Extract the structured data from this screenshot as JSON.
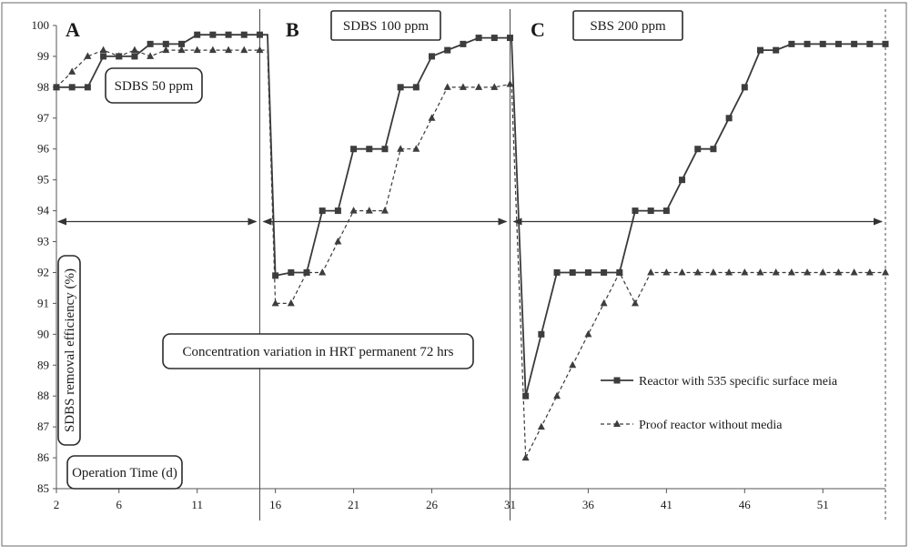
{
  "chart_data": {
    "type": "line",
    "xlabel": "Operation Time (d)",
    "ylabel": "SDBS removal efficiency (%)",
    "xlim": [
      2,
      55
    ],
    "ylim": [
      85,
      100
    ],
    "xticks": [
      2,
      6,
      11,
      16,
      21,
      26,
      31,
      36,
      41,
      46,
      51
    ],
    "yticks": [
      85,
      86,
      87,
      88,
      89,
      90,
      91,
      92,
      93,
      94,
      95,
      96,
      97,
      98,
      99,
      100
    ],
    "grid": false,
    "legend_position": "lower-right",
    "panels": [
      {
        "letter": "A",
        "label": "SDBS 50 ppm",
        "x_start": 2,
        "x_end": 15
      },
      {
        "letter": "B",
        "label": "SDBS 100 ppm",
        "x_start": 15,
        "x_end": 31
      },
      {
        "letter": "C",
        "label": "SBS 200 ppm",
        "x_start": 31,
        "x_end": 55
      }
    ],
    "annotation": "Concentration variation in HRT permanent 72 hrs",
    "panel_dividers": [
      15,
      31,
      55
    ],
    "series": [
      {
        "name": "Reactor with 535 specific surface meia",
        "marker": "square",
        "line_style": "solid",
        "points": [
          [
            2,
            98
          ],
          [
            3,
            98
          ],
          [
            4,
            98
          ],
          [
            5,
            99
          ],
          [
            6,
            99
          ],
          [
            7,
            99
          ],
          [
            8,
            99.4
          ],
          [
            9,
            99.4
          ],
          [
            10,
            99.4
          ],
          [
            11,
            99.7
          ],
          [
            12,
            99.7
          ],
          [
            13,
            99.7
          ],
          [
            14,
            99.7
          ],
          [
            15,
            99.7
          ],
          [
            15.5,
            99.7
          ],
          [
            16,
            91.9
          ],
          [
            17,
            92
          ],
          [
            18,
            92
          ],
          [
            19,
            94
          ],
          [
            20,
            94
          ],
          [
            21,
            96
          ],
          [
            22,
            96
          ],
          [
            23,
            96
          ],
          [
            24,
            98
          ],
          [
            25,
            98
          ],
          [
            26,
            99
          ],
          [
            27,
            99.2
          ],
          [
            28,
            99.4
          ],
          [
            29,
            99.6
          ],
          [
            30,
            99.6
          ],
          [
            31,
            99.6
          ],
          [
            31.1,
            99.5
          ],
          [
            32,
            88
          ],
          [
            33,
            90
          ],
          [
            34,
            92
          ],
          [
            35,
            92
          ],
          [
            36,
            92
          ],
          [
            37,
            92
          ],
          [
            38,
            92
          ],
          [
            39,
            94
          ],
          [
            40,
            94
          ],
          [
            41,
            94
          ],
          [
            42,
            95
          ],
          [
            43,
            96
          ],
          [
            44,
            96
          ],
          [
            45,
            97
          ],
          [
            46,
            98
          ],
          [
            47,
            99.2
          ],
          [
            48,
            99.2
          ],
          [
            49,
            99.4
          ],
          [
            50,
            99.4
          ],
          [
            51,
            99.4
          ],
          [
            52,
            99.4
          ],
          [
            53,
            99.4
          ],
          [
            54,
            99.4
          ],
          [
            55,
            99.4
          ]
        ]
      },
      {
        "name": "Proof reactor without media",
        "marker": "triangle",
        "line_style": "dashed",
        "points": [
          [
            2,
            98
          ],
          [
            3,
            98.5
          ],
          [
            4,
            99
          ],
          [
            5,
            99.2
          ],
          [
            6,
            99
          ],
          [
            7,
            99.2
          ],
          [
            8,
            99
          ],
          [
            9,
            99.2
          ],
          [
            10,
            99.2
          ],
          [
            11,
            99.2
          ],
          [
            12,
            99.2
          ],
          [
            13,
            99.2
          ],
          [
            14,
            99.2
          ],
          [
            15,
            99.2
          ],
          [
            15.5,
            99.2
          ],
          [
            16,
            91
          ],
          [
            17,
            91
          ],
          [
            18,
            92
          ],
          [
            19,
            92
          ],
          [
            20,
            93
          ],
          [
            21,
            94
          ],
          [
            22,
            94
          ],
          [
            23,
            94
          ],
          [
            24,
            96
          ],
          [
            25,
            96
          ],
          [
            26,
            97
          ],
          [
            27,
            98
          ],
          [
            28,
            98
          ],
          [
            29,
            98
          ],
          [
            30,
            98
          ],
          [
            31,
            98.1
          ],
          [
            31.1,
            98
          ],
          [
            32,
            86
          ],
          [
            33,
            87
          ],
          [
            34,
            88
          ],
          [
            35,
            89
          ],
          [
            36,
            90
          ],
          [
            37,
            91
          ],
          [
            38,
            92
          ],
          [
            39,
            91
          ],
          [
            40,
            92
          ],
          [
            41,
            92
          ],
          [
            42,
            92
          ],
          [
            43,
            92
          ],
          [
            44,
            92
          ],
          [
            45,
            92
          ],
          [
            46,
            92
          ],
          [
            47,
            92
          ],
          [
            48,
            92
          ],
          [
            49,
            92
          ],
          [
            50,
            92
          ],
          [
            51,
            92
          ],
          [
            52,
            92
          ],
          [
            53,
            92
          ],
          [
            54,
            92
          ],
          [
            55,
            92
          ]
        ]
      }
    ]
  },
  "colors": {
    "line": "#3a3a3a",
    "marker": "#3d3d3d",
    "axis": "#555555",
    "box_border": "#2b2b2b"
  }
}
